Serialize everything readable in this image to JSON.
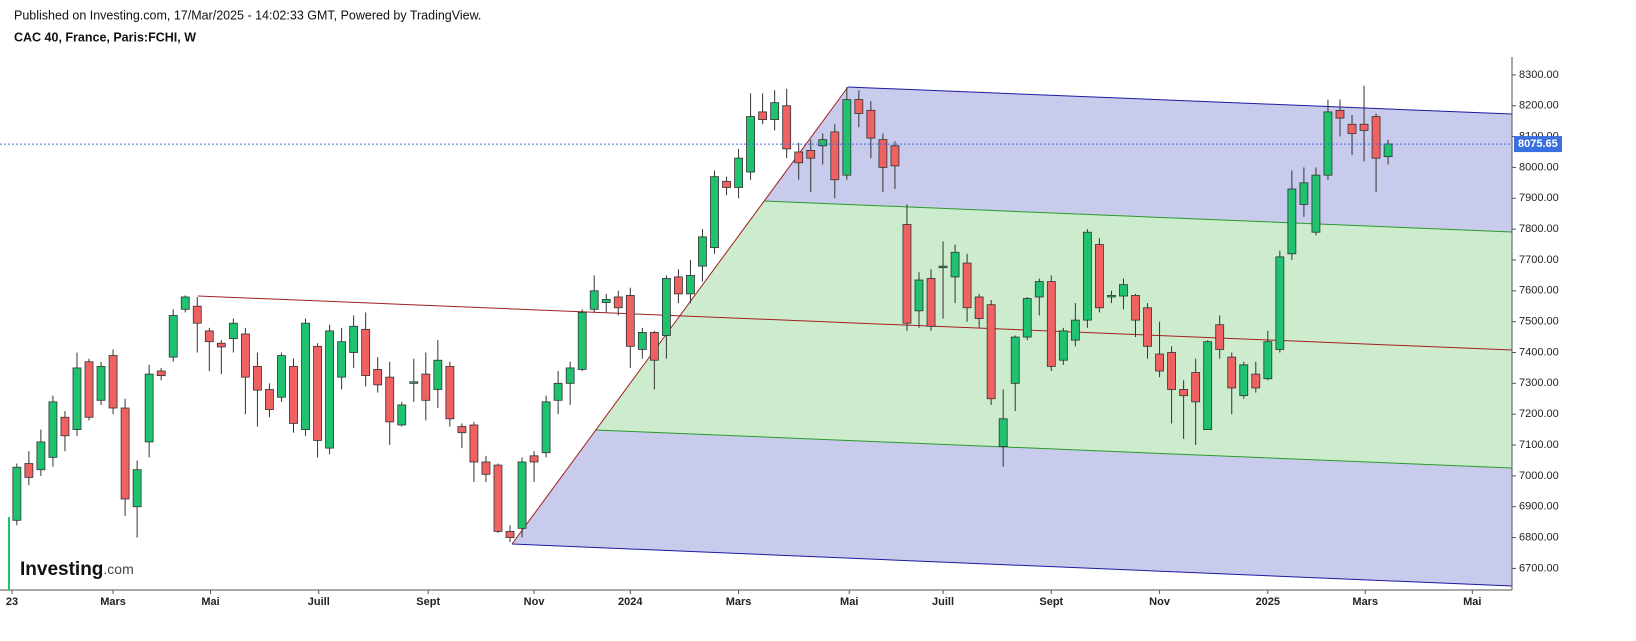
{
  "header": {
    "published": "Published on Investing.com, 17/Mar/2025 - 14:02:33 GMT, Powered by TradingView.",
    "symbol": "CAC 40, France, Paris:FCHI, W"
  },
  "logo": {
    "name": "Investing",
    "suffix": ".com"
  },
  "chart_data": {
    "type": "candlestick",
    "up_color": "#1ec26f",
    "down_color": "#f06262",
    "outline_color": "#333333",
    "last_price": 8075.65,
    "last_price_color": "#3a6fe0",
    "xlim": [
      -1.4,
      124.3
    ],
    "ylim": [
      6630,
      8358
    ],
    "xticks": [
      {
        "value": -0.4,
        "label": "23"
      },
      {
        "value": 8,
        "label": "Mars"
      },
      {
        "value": 16.1,
        "label": "Mai"
      },
      {
        "value": 25.1,
        "label": "Juill"
      },
      {
        "value": 34.2,
        "label": "Sept"
      },
      {
        "value": 43,
        "label": "Nov"
      },
      {
        "value": 51,
        "label": "2024"
      },
      {
        "value": 60,
        "label": "Mars"
      },
      {
        "value": 69.2,
        "label": "Mai"
      },
      {
        "value": 77,
        "label": "Juill"
      },
      {
        "value": 86,
        "label": "Sept"
      },
      {
        "value": 95,
        "label": "Nov"
      },
      {
        "value": 104,
        "label": "2025"
      },
      {
        "value": 112.1,
        "label": "Mars"
      },
      {
        "value": 121,
        "label": "Mai"
      }
    ],
    "yticks": [
      {
        "value": 6700,
        "label": "6700.00"
      },
      {
        "value": 6800,
        "label": "6800.00"
      },
      {
        "value": 6900,
        "label": "6900.00"
      },
      {
        "value": 7000,
        "label": "7000.00"
      },
      {
        "value": 7100,
        "label": "7100.00"
      },
      {
        "value": 7200,
        "label": "7200.00"
      },
      {
        "value": 7300,
        "label": "7300.00"
      },
      {
        "value": 7400,
        "label": "7400.00"
      },
      {
        "value": 7500,
        "label": "7500.00"
      },
      {
        "value": 7600,
        "label": "7600.00"
      },
      {
        "value": 7700,
        "label": "7700.00"
      },
      {
        "value": 7800,
        "label": "7800.00"
      },
      {
        "value": 7900,
        "label": "7900.00"
      },
      {
        "value": 8000,
        "label": "8000.00"
      },
      {
        "value": 8100,
        "label": "8100.00"
      },
      {
        "value": 8200,
        "label": "8200.00"
      },
      {
        "value": 8300,
        "label": "8300.00"
      }
    ],
    "x": [
      0,
      1,
      2,
      3,
      4,
      5,
      6,
      7,
      8,
      9,
      10,
      11,
      12,
      13,
      14,
      15,
      16,
      17,
      18,
      19,
      20,
      21,
      22,
      23,
      24,
      25,
      26,
      27,
      28,
      29,
      30,
      31,
      32,
      33,
      34,
      35,
      36,
      37,
      38,
      39,
      40,
      41,
      42,
      43,
      44,
      45,
      46,
      47,
      48,
      49,
      50,
      51,
      52,
      53,
      54,
      55,
      56,
      57,
      58,
      59,
      60,
      61,
      62,
      63,
      64,
      65,
      66,
      67,
      68,
      69,
      70,
      71,
      72,
      73,
      74,
      75,
      76,
      77,
      78,
      79,
      80,
      81,
      82,
      83,
      84,
      85,
      86,
      87,
      88,
      89,
      90,
      91,
      92,
      93,
      94,
      95,
      96,
      97,
      98,
      99,
      100,
      101,
      102,
      103,
      104,
      105,
      106,
      107,
      108,
      109,
      110,
      111,
      112,
      113,
      114
    ],
    "open": [
      6856,
      7040,
      7020,
      7060,
      7190,
      7150,
      7370,
      7245,
      7390,
      7220,
      6900,
      7110,
      7340,
      7385,
      7540,
      7550,
      7470,
      7430,
      7445,
      7460,
      7355,
      7280,
      7255,
      7355,
      7150,
      7420,
      7090,
      7320,
      7400,
      7475,
      7345,
      7320,
      7165,
      7300,
      7330,
      7280,
      7355,
      7160,
      7165,
      7045,
      7035,
      6820,
      6830,
      7065,
      7075,
      7245,
      7300,
      7345,
      7540,
      7562,
      7580,
      7585,
      7410,
      7465,
      7455,
      7645,
      7590,
      7680,
      7740,
      7955,
      7935,
      7985,
      8180,
      8155,
      8200,
      8050,
      8055,
      8070,
      8115,
      7975,
      8220,
      8185,
      8090,
      8070,
      7815,
      7535,
      7640,
      7675,
      7645,
      7690,
      7580,
      7555,
      7095,
      7300,
      7450,
      7580,
      7630,
      7375,
      7440,
      7505,
      7750,
      7580,
      7583,
      7585,
      7545,
      7395,
      7400,
      7280,
      7335,
      7150,
      7490,
      7385,
      7260,
      7330,
      7315,
      7410,
      7720,
      7880,
      7790,
      7975,
      8185,
      8140,
      8140,
      8165,
      8035
    ],
    "high": [
      7040,
      7080,
      7150,
      7260,
      7210,
      7400,
      7380,
      7370,
      7410,
      7250,
      7050,
      7360,
      7350,
      7540,
      7585,
      7580,
      7480,
      7440,
      7510,
      7480,
      7400,
      7300,
      7400,
      7380,
      7510,
      7430,
      7490,
      7480,
      7520,
      7530,
      7385,
      7370,
      7240,
      7380,
      7400,
      7440,
      7370,
      7170,
      7175,
      7065,
      7040,
      6840,
      7060,
      7080,
      7260,
      7340,
      7370,
      7540,
      7650,
      7590,
      7600,
      7610,
      7480,
      7470,
      7650,
      7670,
      7700,
      7800,
      7990,
      7970,
      8060,
      8240,
      8240,
      8250,
      8255,
      8080,
      8090,
      8110,
      8140,
      8260,
      8250,
      8215,
      8110,
      8085,
      7880,
      7660,
      7670,
      7760,
      7750,
      7720,
      7590,
      7570,
      7280,
      7455,
      7580,
      7640,
      7650,
      7480,
      7560,
      7800,
      7770,
      7600,
      7640,
      7590,
      7560,
      7500,
      7420,
      7310,
      7380,
      7440,
      7520,
      7400,
      7370,
      7370,
      7470,
      7730,
      7990,
      8000,
      8000,
      8220,
      8220,
      8170,
      8265,
      8175,
      8090
    ],
    "low": [
      6840,
      6970,
      7000,
      7030,
      7080,
      7130,
      7180,
      7230,
      7200,
      6870,
      6800,
      7060,
      7310,
      7370,
      7530,
      7400,
      7340,
      7330,
      7400,
      7200,
      7160,
      7190,
      7240,
      7140,
      7130,
      7060,
      7070,
      7280,
      7350,
      7290,
      7270,
      7100,
      7160,
      7240,
      7180,
      7220,
      7160,
      7090,
      6980,
      6980,
      6815,
      6785,
      6800,
      6980,
      7060,
      7200,
      7230,
      7340,
      7530,
      7530,
      7520,
      7350,
      7380,
      7280,
      7380,
      7560,
      7560,
      7630,
      7720,
      7910,
      7900,
      7960,
      8140,
      8120,
      8030,
      7960,
      7920,
      8010,
      7900,
      7960,
      8130,
      8030,
      7920,
      7930,
      7470,
      7480,
      7470,
      7510,
      7560,
      7500,
      7480,
      7230,
      7030,
      7210,
      7440,
      7520,
      7340,
      7360,
      7420,
      7480,
      7530,
      7560,
      7540,
      7450,
      7380,
      7320,
      7170,
      7120,
      7100,
      7150,
      7380,
      7200,
      7250,
      7270,
      7310,
      7400,
      7700,
      7840,
      7780,
      7960,
      8100,
      8040,
      8020,
      7920,
      8010
    ],
    "close": [
      7028,
      6995,
      7110,
      7240,
      7130,
      7350,
      7190,
      7355,
      7220,
      6925,
      7020,
      7330,
      7325,
      7520,
      7580,
      7495,
      7435,
      7418,
      7495,
      7320,
      7278,
      7215,
      7390,
      7170,
      7495,
      7115,
      7470,
      7435,
      7485,
      7325,
      7295,
      7175,
      7230,
      7305,
      7245,
      7375,
      7185,
      7140,
      7045,
      7005,
      6820,
      6800,
      7045,
      7045,
      7240,
      7300,
      7350,
      7530,
      7600,
      7572,
      7545,
      7420,
      7465,
      7375,
      7640,
      7590,
      7650,
      7775,
      7970,
      7935,
      8030,
      8165,
      8155,
      8210,
      8060,
      8015,
      8030,
      8090,
      7960,
      8220,
      8175,
      8095,
      8000,
      8005,
      7495,
      7635,
      7485,
      7680,
      7725,
      7545,
      7510,
      7250,
      7185,
      7450,
      7575,
      7630,
      7355,
      7470,
      7505,
      7790,
      7545,
      7585,
      7620,
      7505,
      7420,
      7340,
      7280,
      7260,
      7240,
      7435,
      7410,
      7285,
      7360,
      7285,
      7435,
      7710,
      7930,
      7950,
      7975,
      8180,
      8160,
      8110,
      8120,
      8030,
      8076
    ]
  }
}
